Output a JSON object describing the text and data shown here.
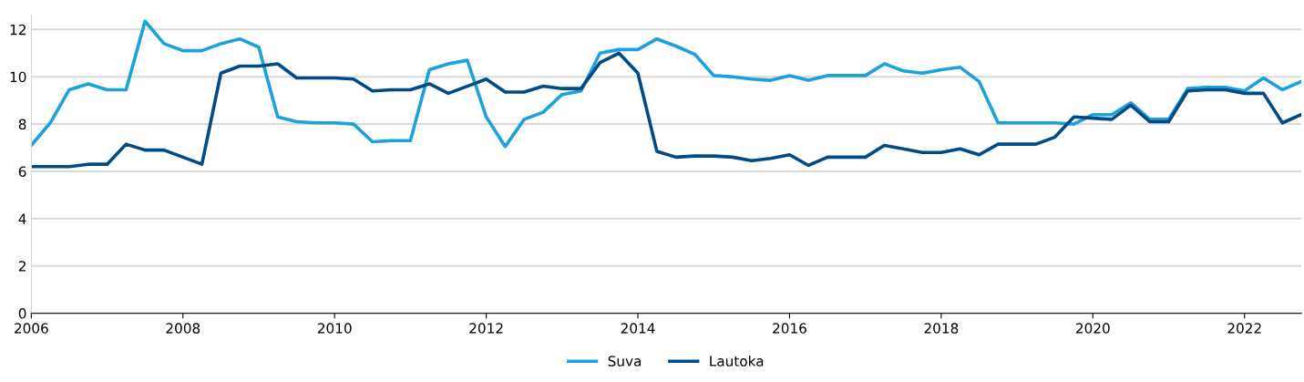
{
  "chart_data": {
    "type": "line",
    "x": [
      2006,
      2006.25,
      2006.5,
      2006.75,
      2007,
      2007.25,
      2007.5,
      2007.75,
      2008,
      2008.25,
      2008.5,
      2008.75,
      2009,
      2009.25,
      2009.5,
      2009.75,
      2010,
      2010.25,
      2010.5,
      2010.75,
      2011,
      2011.25,
      2011.5,
      2011.75,
      2012,
      2012.25,
      2012.5,
      2012.75,
      2013,
      2013.25,
      2013.5,
      2013.75,
      2014,
      2014.25,
      2014.5,
      2014.75,
      2015,
      2015.25,
      2015.5,
      2015.75,
      2016,
      2016.25,
      2016.5,
      2016.75,
      2017,
      2017.25,
      2017.5,
      2017.75,
      2018,
      2018.25,
      2018.5,
      2018.75,
      2019,
      2019.25,
      2019.5,
      2019.75,
      2020,
      2020.25,
      2020.5,
      2020.75,
      2021,
      2021.25,
      2021.5,
      2021.75,
      2022,
      2022.25,
      2022.5,
      2022.75
    ],
    "series": [
      {
        "name": "Suva",
        "color": "#1ba1dc",
        "values": [
          7.1,
          8.05,
          9.45,
          9.7,
          9.45,
          9.45,
          12.35,
          11.4,
          11.1,
          11.1,
          11.4,
          11.6,
          11.25,
          8.3,
          8.1,
          8.05,
          8.05,
          8.0,
          7.25,
          7.3,
          7.3,
          10.3,
          10.55,
          10.7,
          8.3,
          7.05,
          8.2,
          8.5,
          9.25,
          9.4,
          11.0,
          11.15,
          11.15,
          11.6,
          11.3,
          10.95,
          10.05,
          10.0,
          9.9,
          9.85,
          10.05,
          9.85,
          10.05,
          10.05,
          10.05,
          10.55,
          10.25,
          10.15,
          10.3,
          10.4,
          9.8,
          8.05,
          8.05,
          8.05,
          8.05,
          8.0,
          8.4,
          8.4,
          8.9,
          8.2,
          8.2,
          9.5,
          9.55,
          9.55,
          9.4,
          9.95,
          9.45,
          9.8
        ]
      },
      {
        "name": "Lautoka",
        "color": "#004a86",
        "values": [
          6.2,
          6.2,
          6.2,
          6.3,
          6.3,
          7.15,
          6.9,
          6.9,
          6.6,
          6.3,
          10.15,
          10.45,
          10.45,
          10.55,
          9.95,
          9.95,
          9.95,
          9.9,
          9.4,
          9.45,
          9.45,
          9.7,
          9.3,
          9.6,
          9.9,
          9.35,
          9.35,
          9.6,
          9.5,
          9.5,
          10.6,
          11.0,
          10.15,
          6.85,
          6.6,
          6.65,
          6.65,
          6.6,
          6.45,
          6.55,
          6.7,
          6.25,
          6.6,
          6.6,
          6.6,
          7.1,
          6.95,
          6.8,
          6.8,
          6.95,
          6.7,
          7.15,
          7.15,
          7.15,
          7.45,
          8.3,
          8.25,
          8.2,
          8.8,
          8.1,
          8.1,
          9.4,
          9.45,
          9.45,
          9.3,
          9.3,
          8.05,
          8.4
        ]
      }
    ],
    "xlim": [
      2006,
      2022.75
    ],
    "xticks": [
      2006,
      2008,
      2010,
      2012,
      2014,
      2016,
      2018,
      2020,
      2022
    ],
    "ylim": [
      0,
      12.6
    ],
    "yticks": [
      0,
      2,
      4,
      6,
      8,
      10,
      12
    ],
    "grid": "y",
    "legend": "bottom",
    "line_style": "solid",
    "marker": "none"
  }
}
